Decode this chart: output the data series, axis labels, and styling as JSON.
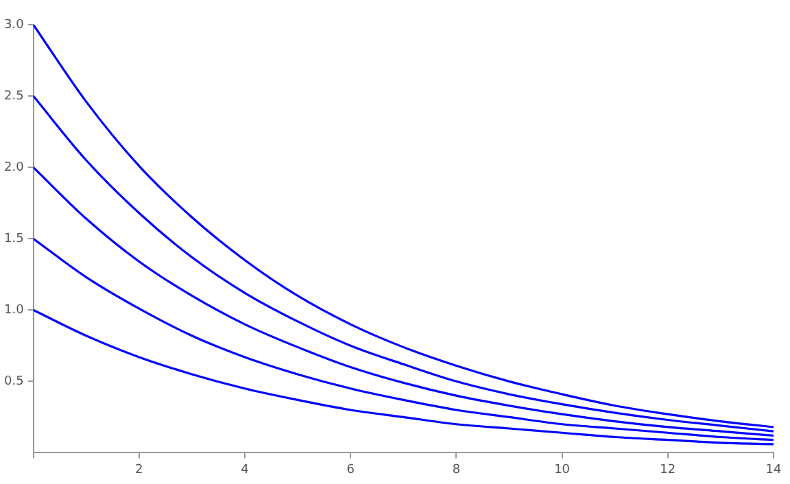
{
  "chart_data": {
    "type": "line",
    "x": [
      0,
      1,
      2,
      3,
      4,
      5,
      6,
      7,
      8,
      9,
      10,
      11,
      12,
      13,
      14
    ],
    "series": [
      {
        "color": "#0000ff",
        "values": [
          3,
          2.46,
          2.01,
          1.65,
          1.35,
          1.1,
          0.9,
          0.74,
          0.61,
          0.5,
          0.41,
          0.33,
          0.27,
          0.22,
          0.18
        ]
      },
      {
        "color": "#0000ff",
        "values": [
          2.5,
          2.05,
          1.68,
          1.37,
          1.12,
          0.92,
          0.75,
          0.62,
          0.5,
          0.41,
          0.34,
          0.28,
          0.23,
          0.19,
          0.15
        ]
      },
      {
        "color": "#0000ff",
        "values": [
          2,
          1.64,
          1.34,
          1.1,
          0.9,
          0.74,
          0.6,
          0.49,
          0.4,
          0.33,
          0.27,
          0.22,
          0.18,
          0.15,
          0.12
        ]
      },
      {
        "color": "#0000ff",
        "values": [
          1.5,
          1.23,
          1.01,
          0.82,
          0.67,
          0.55,
          0.45,
          0.37,
          0.3,
          0.25,
          0.2,
          0.17,
          0.14,
          0.11,
          0.09
        ]
      },
      {
        "color": "#0000ff",
        "values": [
          1,
          0.82,
          0.67,
          0.55,
          0.45,
          0.37,
          0.3,
          0.25,
          0.2,
          0.17,
          0.14,
          0.11,
          0.09,
          0.07,
          0.06
        ]
      }
    ],
    "xlim": [
      0,
      14
    ],
    "ylim": [
      0,
      3
    ],
    "xticks": [
      {
        "value": 0,
        "label": null
      },
      2,
      4,
      6,
      8,
      10,
      12,
      14
    ],
    "yticks": [
      0.5,
      {
        "value": 1,
        "label": "1.0"
      },
      1.5,
      {
        "value": 2,
        "label": "2.0"
      },
      2.5,
      {
        "value": 3,
        "label": "3.0"
      }
    ],
    "grid": false,
    "legend": false,
    "marker": "none",
    "line_style": "solid"
  }
}
